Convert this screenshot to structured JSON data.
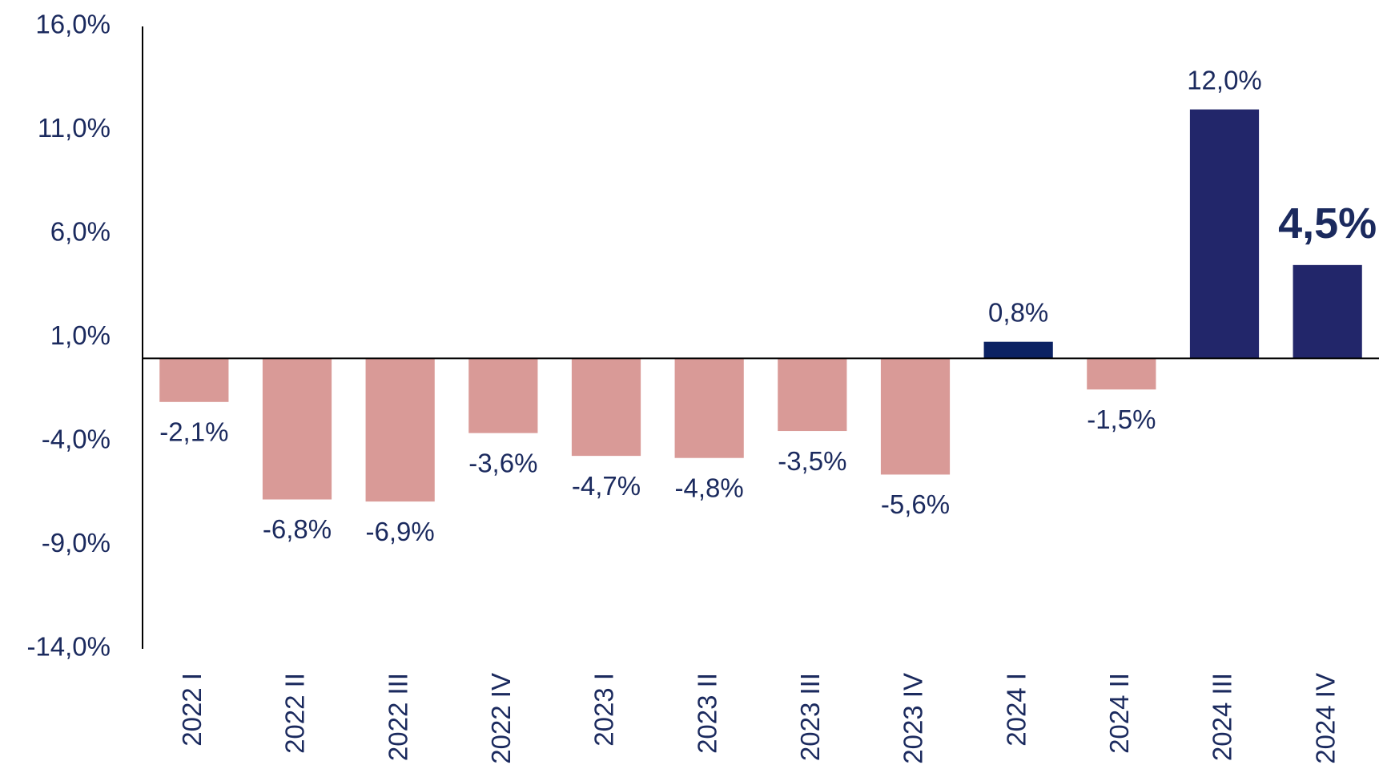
{
  "chart_data": {
    "type": "bar",
    "categories": [
      "2022 I",
      "2022 II",
      "2022 III",
      "2022 IV",
      "2023 I",
      "2023 II",
      "2023 III",
      "2023 IV",
      "2024 I",
      "2024 II",
      "2024 III",
      "2024 IV"
    ],
    "values": [
      -2.1,
      -6.8,
      -6.9,
      -3.6,
      -4.7,
      -4.8,
      -3.5,
      -5.6,
      0.8,
      -1.5,
      12.0,
      4.5
    ],
    "value_labels": [
      "-2,1%",
      "-6,8%",
      "-6,9%",
      "-3,6%",
      "-4,7%",
      "-4,8%",
      "-3,5%",
      "-5,6%",
      "0,8%",
      "-1,5%",
      "12,0%",
      "4,5%"
    ],
    "colors": [
      "#d99a97",
      "#d99a97",
      "#d99a97",
      "#d99a97",
      "#d99a97",
      "#d99a97",
      "#d99a97",
      "#d99a97",
      "#0b2263",
      "#d99a97",
      "#22266a",
      "#22266a"
    ],
    "emphasized_label": 11,
    "ylim": [
      -14,
      16
    ],
    "yticks": [
      {
        "value": 16,
        "label": "16,0%"
      },
      {
        "value": 11,
        "label": "11,0%"
      },
      {
        "value": 6,
        "label": "6,0%"
      },
      {
        "value": 1,
        "label": "1,0%"
      },
      {
        "value": -4,
        "label": "-4,0%"
      },
      {
        "value": -9,
        "label": "-9,0%"
      },
      {
        "value": -14,
        "label": "-14,0%"
      }
    ],
    "grid": false
  }
}
